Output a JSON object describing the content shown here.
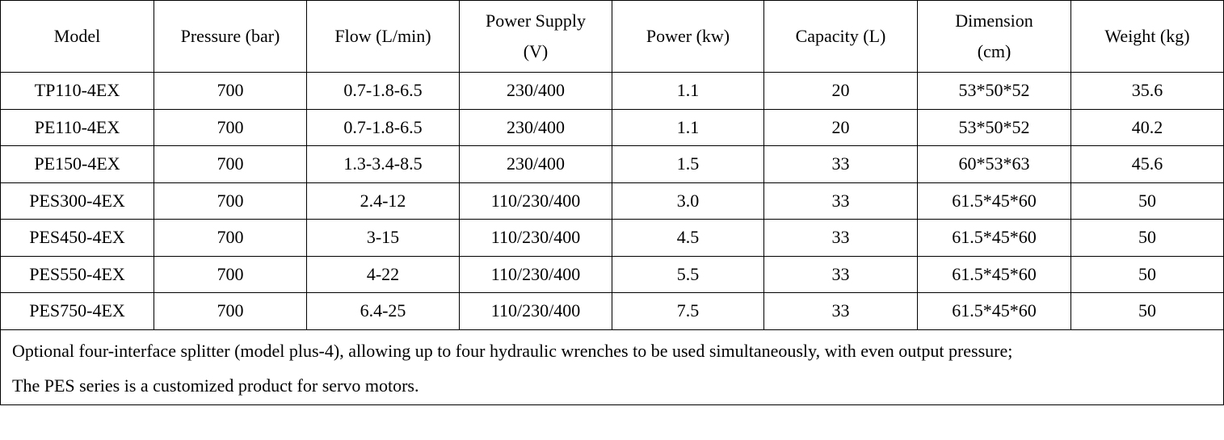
{
  "table": {
    "header": [
      [
        "Model"
      ],
      [
        "Pressure (bar)"
      ],
      [
        "Flow (L/min)"
      ],
      [
        "Power Supply",
        "(V)"
      ],
      [
        "Power (kw)"
      ],
      [
        "Capacity (L)"
      ],
      [
        "Dimension",
        "(cm)"
      ],
      [
        "Weight (kg)"
      ]
    ],
    "rows": [
      [
        "TP110-4EX",
        "700",
        "0.7-1.8-6.5",
        "230/400",
        "1.1",
        "20",
        "53*50*52",
        "35.6"
      ],
      [
        "PE110-4EX",
        "700",
        "0.7-1.8-6.5",
        "230/400",
        "1.1",
        "20",
        "53*50*52",
        "40.2"
      ],
      [
        "PE150-4EX",
        "700",
        "1.3-3.4-8.5",
        "230/400",
        "1.5",
        "33",
        "60*53*63",
        "45.6"
      ],
      [
        "PES300-4EX",
        "700",
        "2.4-12",
        "110/230/400",
        "3.0",
        "33",
        "61.5*45*60",
        "50"
      ],
      [
        "PES450-4EX",
        "700",
        "3-15",
        "110/230/400",
        "4.5",
        "33",
        "61.5*45*60",
        "50"
      ],
      [
        "PES550-4EX",
        "700",
        "4-22",
        "110/230/400",
        "5.5",
        "33",
        "61.5*45*60",
        "50"
      ],
      [
        "PES750-4EX",
        "700",
        "6.4-25",
        "110/230/400",
        "7.5",
        "33",
        "61.5*45*60",
        "50"
      ]
    ],
    "notes": [
      "Optional four-interface splitter (model plus-4), allowing up to four hydraulic wrenches to be used simultaneously, with even output pressure;",
      "The PES series is a customized product for servo motors."
    ]
  }
}
